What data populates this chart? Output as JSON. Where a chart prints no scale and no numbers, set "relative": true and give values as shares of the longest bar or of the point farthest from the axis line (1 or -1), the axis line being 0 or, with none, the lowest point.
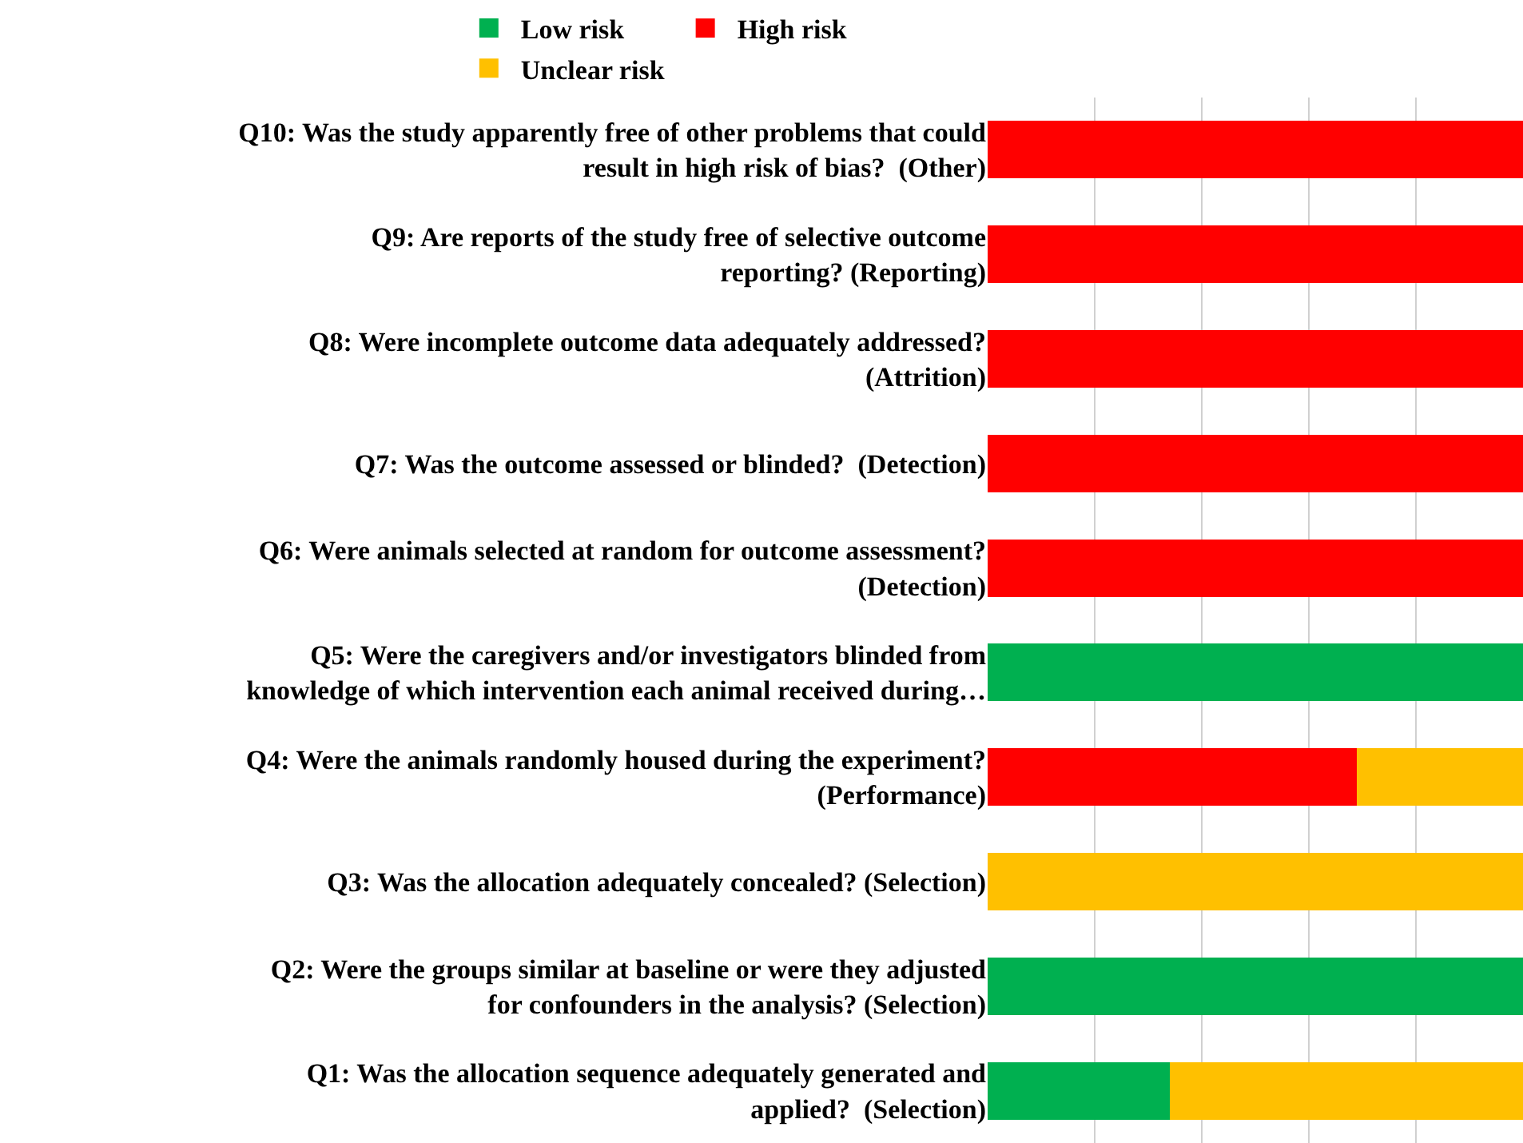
{
  "chart_data": {
    "type": "bar",
    "orientation": "horizontal",
    "stacked": true,
    "relative": true,
    "grid": "x",
    "legend": "top",
    "categories": [
      "Q10: Was the study apparently free of other problems that could result in high risk of bias?  (Other)",
      "Q9: Are reports of the study free of selective outcome reporting? (Reporting)",
      "Q8: Were incomplete outcome data adequately addressed? (Attrition)",
      "Q7: Was the outcome assessed or blinded?  (Detection)",
      "Q6: Were animals selected at random for outcome assessment? (Detection)",
      "Q5: Were the caregivers and/or investigators blinded from knowledge of which intervention each animal received during…",
      "Q4: Were the animals randomly housed during the experiment? (Performance)",
      "Q3: Was the allocation adequately concealed? (Selection)",
      "Q2: Were the groups similar at baseline or were they adjusted for confounders in the analysis? (Selection)",
      "Q1: Was the allocation sequence adequately generated and applied?  (Selection)"
    ],
    "series": [
      {
        "name": "Low risk",
        "color": "#00b050",
        "values": [
          null,
          null,
          null,
          null,
          null,
          1,
          null,
          null,
          1,
          0.34
        ]
      },
      {
        "name": "High risk",
        "color": "#ff0000",
        "values": [
          1,
          1,
          1,
          1,
          1,
          null,
          0.69,
          null,
          null,
          null
        ]
      },
      {
        "name": "Unclear risk",
        "color": "#ffc000",
        "values": [
          null,
          null,
          null,
          null,
          null,
          null,
          0.31,
          1,
          null,
          0.66
        ]
      }
    ]
  }
}
